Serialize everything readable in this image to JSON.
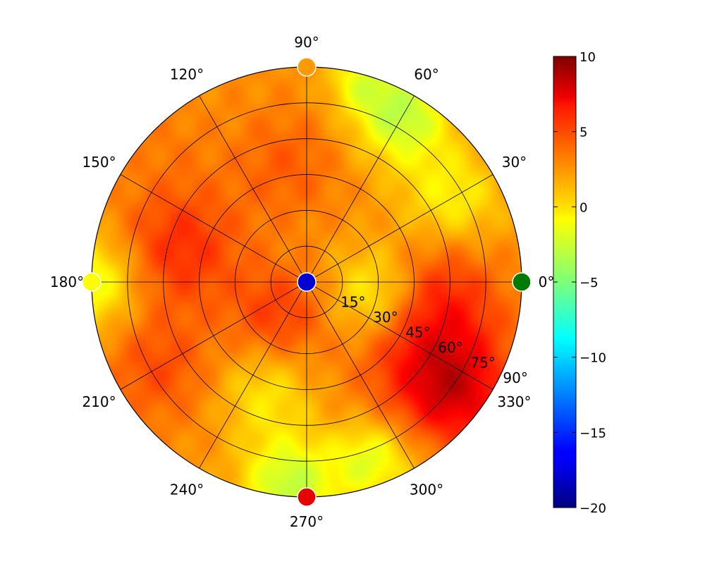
{
  "chart_data": {
    "type": "heatmap",
    "projection": "polar",
    "title": "",
    "angular_ticks": [
      {
        "deg": 0,
        "label": "0°"
      },
      {
        "deg": 30,
        "label": "30°"
      },
      {
        "deg": 60,
        "label": "60°"
      },
      {
        "deg": 90,
        "label": "90°"
      },
      {
        "deg": 120,
        "label": "120°"
      },
      {
        "deg": 150,
        "label": "150°"
      },
      {
        "deg": 180,
        "label": "180°"
      },
      {
        "deg": 210,
        "label": "210°"
      },
      {
        "deg": 240,
        "label": "240°"
      },
      {
        "deg": 270,
        "label": "270°"
      },
      {
        "deg": 300,
        "label": "300°"
      },
      {
        "deg": 330,
        "label": "330°"
      }
    ],
    "radial_ticks": [
      {
        "value": 15,
        "label": "15°"
      },
      {
        "value": 30,
        "label": "30°"
      },
      {
        "value": 45,
        "label": "45°"
      },
      {
        "value": 60,
        "label": "60°"
      },
      {
        "value": 75,
        "label": "75°"
      },
      {
        "value": 90,
        "label": "90°"
      }
    ],
    "radial_range": [
      0,
      90
    ],
    "radial_label_angle_deg": -25,
    "colormap": "jet",
    "color_range": [
      -20,
      10
    ],
    "colorbar_ticks": [
      {
        "value": 10,
        "label": "10"
      },
      {
        "value": 5,
        "label": "5"
      },
      {
        "value": 0,
        "label": "0"
      },
      {
        "value": -5,
        "label": "−5"
      },
      {
        "value": -10,
        "label": "−10"
      },
      {
        "value": -15,
        "label": "−15"
      },
      {
        "value": -20,
        "label": "−20"
      }
    ],
    "grid": true,
    "colorbar_position": "right",
    "field_baseline": 2,
    "field_features": [
      {
        "theta": 330,
        "r": 62,
        "spread": 20,
        "amp": 4.5
      },
      {
        "theta": 322,
        "r": 80,
        "spread": 14,
        "amp": 3
      },
      {
        "theta": 165,
        "r": 55,
        "spread": 18,
        "amp": 3
      },
      {
        "theta": 230,
        "r": 18,
        "spread": 14,
        "amp": 2.5
      },
      {
        "theta": 100,
        "r": 50,
        "spread": 16,
        "amp": 1.5
      },
      {
        "theta": 210,
        "r": 72,
        "spread": 16,
        "amp": 2
      },
      {
        "theta": 0,
        "r": 55,
        "spread": 16,
        "amp": 2
      },
      {
        "theta": 60,
        "r": 80,
        "spread": 14,
        "amp": -5
      },
      {
        "theta": 75,
        "r": 88,
        "spread": 10,
        "amp": -3
      },
      {
        "theta": 265,
        "r": 85,
        "spread": 14,
        "amp": -5
      },
      {
        "theta": 290,
        "r": 80,
        "spread": 12,
        "amp": -4
      },
      {
        "theta": 350,
        "r": 30,
        "spread": 14,
        "amp": -3.5
      },
      {
        "theta": 30,
        "r": 70,
        "spread": 15,
        "amp": -3
      },
      {
        "theta": 250,
        "r": 50,
        "spread": 14,
        "amp": -2.5
      },
      {
        "theta": 180,
        "r": 90,
        "spread": 14,
        "amp": -4
      },
      {
        "theta": 135,
        "r": 82,
        "spread": 14,
        "amp": 0.5
      }
    ],
    "markers": [
      {
        "theta": 0,
        "r": 0,
        "value": -18,
        "color": "#0000d0"
      },
      {
        "theta": 0,
        "r": 90,
        "value": -8,
        "color": "#007a00"
      },
      {
        "theta": 90,
        "r": 90,
        "value": 2,
        "color": "#ff9a00"
      },
      {
        "theta": 180,
        "r": 90,
        "value": -1,
        "color": "#ffff00"
      },
      {
        "theta": 270,
        "r": 90,
        "value": 9,
        "color": "#e80000"
      }
    ]
  }
}
